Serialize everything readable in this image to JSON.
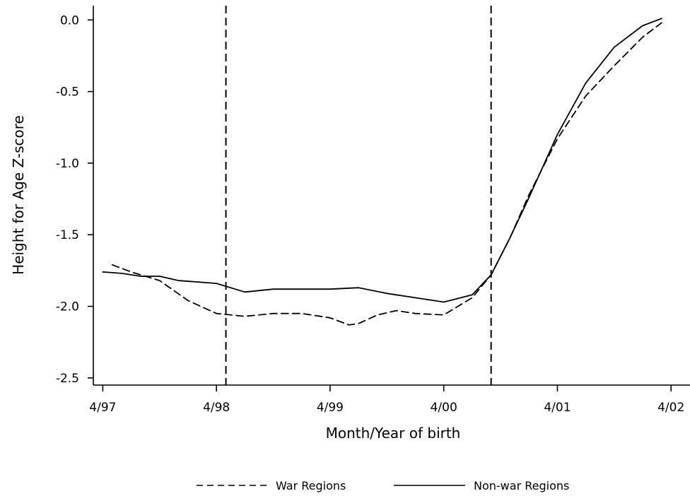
{
  "chart_data": {
    "type": "line",
    "xlabel": "Month/Year of birth",
    "ylabel": "Height for Age Z-score",
    "x_ticks": [
      "4/97",
      "4/98",
      "4/99",
      "4/00",
      "4/01",
      "4/02"
    ],
    "y_ticks": [
      "0.0",
      "-0.5",
      "-1.0",
      "-1.5",
      "-2.0",
      "-2.5"
    ],
    "xlim": [
      "1997-03",
      "2002-06"
    ],
    "ylim": [
      -2.55,
      0.1
    ],
    "grid": false,
    "legend_position": "bottom",
    "vertical_reference_lines": [
      "1998-05",
      "2000-09"
    ],
    "series": [
      {
        "name": "War Regions",
        "style": "dashed",
        "color": "#000000",
        "x": [
          "1997-05",
          "1997-07",
          "1997-10",
          "1998-01",
          "1998-04",
          "1998-07",
          "1998-10",
          "1999-01",
          "1999-04",
          "1999-06",
          "1999-07",
          "1999-09",
          "1999-11",
          "2000-01",
          "2000-04",
          "2000-07",
          "2000-09",
          "2000-11",
          "2001-01",
          "2001-04",
          "2001-07",
          "2001-10",
          "2002-01",
          "2002-03"
        ],
        "values": [
          -1.71,
          -1.76,
          -1.82,
          -1.96,
          -2.05,
          -2.07,
          -2.05,
          -2.05,
          -2.08,
          -2.13,
          -2.12,
          -2.06,
          -2.03,
          -2.05,
          -2.06,
          -1.94,
          -1.78,
          -1.52,
          -1.22,
          -0.83,
          -0.53,
          -0.32,
          -0.12,
          -0.02
        ]
      },
      {
        "name": "Non-war Regions",
        "style": "solid",
        "color": "#000000",
        "x": [
          "1997-04",
          "1997-06",
          "1997-08",
          "1997-10",
          "1997-12",
          "1998-04",
          "1998-07",
          "1998-10",
          "1999-01",
          "1999-04",
          "1999-07",
          "1999-10",
          "2000-01",
          "2000-04",
          "2000-07",
          "2000-09",
          "2000-11",
          "2001-01",
          "2001-04",
          "2001-07",
          "2001-10",
          "2002-01",
          "2002-03"
        ],
        "values": [
          -1.76,
          -1.77,
          -1.79,
          -1.79,
          -1.82,
          -1.84,
          -1.9,
          -1.88,
          -1.88,
          -1.88,
          -1.87,
          -1.91,
          -1.94,
          -1.97,
          -1.92,
          -1.78,
          -1.52,
          -1.24,
          -0.8,
          -0.44,
          -0.19,
          -0.04,
          0.01
        ]
      }
    ]
  }
}
